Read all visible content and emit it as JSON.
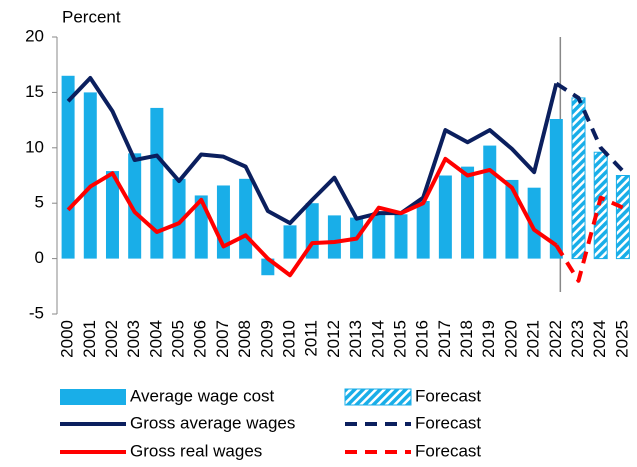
{
  "chart_data": {
    "type": "bar",
    "y_label": "Percent",
    "categories": [
      "2000",
      "2001",
      "2002",
      "2003",
      "2004",
      "2005",
      "2006",
      "2007",
      "2008",
      "2009",
      "2010",
      "2011",
      "2012",
      "2013",
      "2014",
      "2015",
      "2016",
      "2017",
      "2018",
      "2019",
      "2020",
      "2021",
      "2022",
      "2023",
      "2024",
      "2025"
    ],
    "ylim": [
      -5,
      20
    ],
    "yticks": [
      -5,
      0,
      5,
      10,
      15,
      20
    ],
    "series": [
      {
        "name": "Average wage cost",
        "type": "bar",
        "color": "#19aee8",
        "values": [
          16.5,
          15,
          7.9,
          9.5,
          13.6,
          7.2,
          5.7,
          6.6,
          7.2,
          -1.5,
          3,
          5,
          3.9,
          3.7,
          4.2,
          4,
          5.2,
          7.5,
          8.3,
          10.2,
          7.1,
          6.4,
          12.6,
          null,
          null,
          null
        ]
      },
      {
        "name": "Forecast",
        "type": "bar",
        "color": "#19aee8",
        "hatched": true,
        "values": [
          null,
          null,
          null,
          null,
          null,
          null,
          null,
          null,
          null,
          null,
          null,
          null,
          null,
          null,
          null,
          null,
          null,
          null,
          null,
          null,
          null,
          null,
          null,
          14.5,
          9.6,
          7.5
        ]
      },
      {
        "name": "Gross average wages",
        "type": "line",
        "color": "#0b1f5e",
        "values": [
          14.2,
          16.3,
          13.3,
          8.9,
          9.3,
          7,
          9.4,
          9.2,
          8.3,
          4.3,
          3.2,
          5.3,
          7.3,
          3.6,
          4.1,
          4.1,
          5.5,
          11.6,
          10.5,
          11.6,
          9.9,
          7.8,
          15.8,
          null,
          null,
          null
        ]
      },
      {
        "name": "Forecast",
        "type": "line",
        "color": "#0b1f5e",
        "dashed": true,
        "values": [
          null,
          null,
          null,
          null,
          null,
          null,
          null,
          null,
          null,
          null,
          null,
          null,
          null,
          null,
          null,
          null,
          null,
          null,
          null,
          null,
          null,
          null,
          15.8,
          14.5,
          10,
          7.9
        ]
      },
      {
        "name": "Gross real wages",
        "type": "line",
        "color": "#ff0000",
        "values": [
          4.4,
          6.5,
          7.7,
          4.2,
          2.4,
          3.2,
          5.3,
          1.1,
          2.1,
          0,
          -1.5,
          1.4,
          1.5,
          1.8,
          4.6,
          4.1,
          5,
          9,
          7.5,
          8,
          6.4,
          2.6,
          1.2,
          null,
          null,
          null
        ]
      },
      {
        "name": "Forecast",
        "type": "line",
        "color": "#ff0000",
        "dashed": true,
        "values": [
          null,
          null,
          null,
          null,
          null,
          null,
          null,
          null,
          null,
          null,
          null,
          null,
          null,
          null,
          null,
          null,
          null,
          null,
          null,
          null,
          null,
          null,
          1.2,
          -2,
          5.5,
          4.6
        ]
      }
    ]
  }
}
